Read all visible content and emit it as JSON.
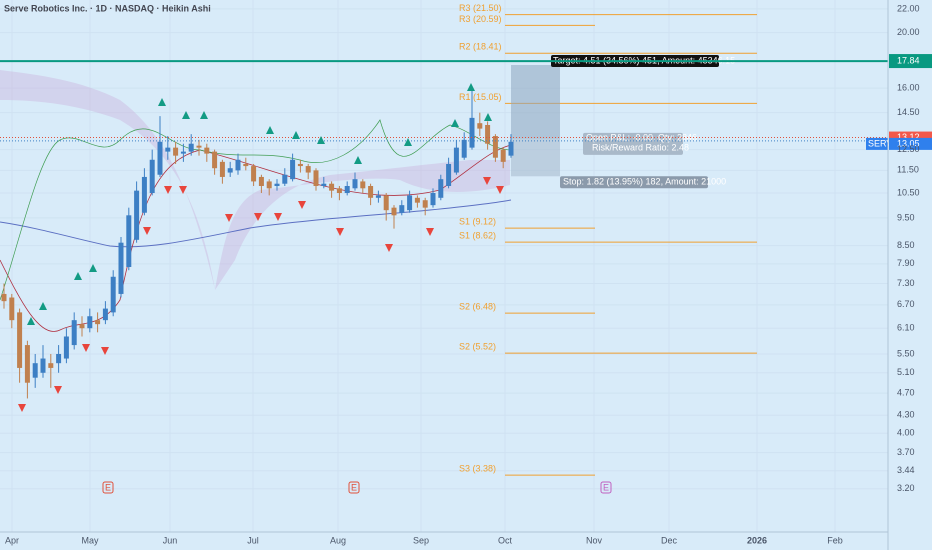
{
  "chart_data": {
    "type": "candlestick",
    "title": "Serve Robotics Inc. · 1D · NASDAQ · Heikin Ashi",
    "log_scale": true,
    "grid": true,
    "ylim": [
      2.69,
      22.8
    ],
    "yticks": [
      {
        "value": 22,
        "label": "22.00"
      },
      {
        "value": 20,
        "label": "20.00"
      },
      {
        "value": 16,
        "label": "16.00"
      },
      {
        "value": 14.5,
        "label": "14.50"
      },
      {
        "value": 12.5,
        "label": "12.50"
      },
      {
        "value": 11.5,
        "label": "11.50"
      },
      {
        "value": 10.5,
        "label": "10.50"
      },
      {
        "value": 9.5,
        "label": "9.50"
      },
      {
        "value": 8.5,
        "label": "8.50"
      },
      {
        "value": 7.9,
        "label": "7.90"
      },
      {
        "value": 7.3,
        "label": "7.30"
      },
      {
        "value": 6.7,
        "label": "6.70"
      },
      {
        "value": 6.1,
        "label": "6.10"
      },
      {
        "value": 5.5,
        "label": "5.50"
      },
      {
        "value": 5.1,
        "label": "5.10"
      },
      {
        "value": 4.7,
        "label": "4.70"
      },
      {
        "value": 4.3,
        "label": "4.30"
      },
      {
        "value": 4,
        "label": "4.00"
      },
      {
        "value": 3.7,
        "label": "3.70"
      },
      {
        "value": 3.44,
        "label": "3.44"
      },
      {
        "value": 3.2,
        "label": "3.20"
      }
    ],
    "xticks": [
      "Apr",
      "May",
      "Jun",
      "Jul",
      "Aug",
      "Sep",
      "Oct",
      "Nov",
      "Dec",
      "2026",
      "Feb"
    ],
    "up_color": "#3d7fc4",
    "down_color": "#c0804e",
    "candles": [
      [
        7.0,
        7.3,
        6.6,
        6.8
      ],
      [
        6.9,
        7.0,
        6.1,
        6.3
      ],
      [
        6.5,
        6.6,
        4.9,
        5.2
      ],
      [
        5.7,
        5.8,
        4.6,
        4.9
      ],
      [
        5.0,
        5.5,
        4.8,
        5.3
      ],
      [
        5.1,
        5.7,
        5.0,
        5.4
      ],
      [
        5.3,
        5.5,
        4.8,
        5.2
      ],
      [
        5.3,
        5.7,
        5.1,
        5.5
      ],
      [
        5.4,
        6.1,
        5.3,
        5.9
      ],
      [
        5.7,
        6.5,
        5.6,
        6.3
      ],
      [
        6.2,
        6.4,
        5.9,
        6.1
      ],
      [
        6.1,
        6.6,
        6.0,
        6.4
      ],
      [
        6.3,
        6.5,
        6.0,
        6.2
      ],
      [
        6.3,
        6.8,
        6.2,
        6.6
      ],
      [
        6.5,
        7.7,
        6.4,
        7.5
      ],
      [
        7.0,
        8.8,
        6.9,
        8.6
      ],
      [
        7.8,
        9.9,
        7.7,
        9.6
      ],
      [
        8.7,
        11.0,
        8.6,
        10.6
      ],
      [
        9.7,
        11.6,
        9.6,
        11.2
      ],
      [
        10.5,
        12.5,
        10.4,
        12.0
      ],
      [
        11.3,
        14.3,
        11.2,
        12.9
      ],
      [
        12.4,
        13.2,
        12.0,
        12.6
      ],
      [
        12.6,
        12.9,
        11.8,
        12.2
      ],
      [
        12.3,
        12.8,
        11.9,
        12.4
      ],
      [
        12.4,
        13.3,
        12.2,
        12.8
      ],
      [
        12.7,
        13.0,
        12.2,
        12.6
      ],
      [
        12.6,
        12.8,
        11.9,
        12.3
      ],
      [
        12.4,
        12.5,
        11.3,
        11.6
      ],
      [
        11.9,
        12.0,
        10.9,
        11.2
      ],
      [
        11.4,
        11.9,
        11.2,
        11.6
      ],
      [
        11.5,
        12.3,
        11.3,
        12.0
      ],
      [
        11.8,
        12.1,
        11.5,
        11.7
      ],
      [
        11.7,
        11.8,
        10.8,
        11.0
      ],
      [
        11.2,
        11.3,
        10.5,
        10.8
      ],
      [
        11.0,
        11.1,
        10.4,
        10.7
      ],
      [
        10.8,
        11.1,
        10.6,
        10.9
      ],
      [
        10.9,
        11.6,
        10.8,
        11.3
      ],
      [
        11.1,
        12.3,
        11.0,
        12.0
      ],
      [
        11.8,
        12.0,
        11.4,
        11.7
      ],
      [
        11.7,
        11.8,
        11.1,
        11.4
      ],
      [
        11.5,
        11.6,
        10.6,
        10.8
      ],
      [
        10.8,
        11.2,
        10.7,
        10.9
      ],
      [
        10.9,
        11.0,
        10.3,
        10.6
      ],
      [
        10.7,
        10.8,
        10.2,
        10.5
      ],
      [
        10.5,
        11.0,
        10.4,
        10.8
      ],
      [
        10.7,
        11.4,
        10.6,
        11.1
      ],
      [
        11.0,
        11.1,
        10.5,
        10.7
      ],
      [
        10.8,
        10.9,
        10.0,
        10.3
      ],
      [
        10.3,
        10.6,
        10.1,
        10.4
      ],
      [
        10.4,
        10.5,
        9.4,
        9.8
      ],
      [
        9.9,
        10.0,
        9.1,
        9.6
      ],
      [
        9.7,
        10.2,
        9.6,
        10.0
      ],
      [
        9.8,
        10.6,
        9.7,
        10.4
      ],
      [
        10.3,
        10.4,
        9.9,
        10.1
      ],
      [
        10.2,
        10.3,
        9.6,
        9.9
      ],
      [
        10.0,
        10.7,
        9.9,
        10.5
      ],
      [
        10.3,
        11.3,
        10.2,
        11.1
      ],
      [
        10.8,
        12.1,
        10.7,
        11.8
      ],
      [
        11.4,
        13.0,
        11.3,
        12.6
      ],
      [
        12.1,
        13.4,
        12.0,
        13.0
      ],
      [
        12.6,
        16.0,
        12.5,
        14.2
      ],
      [
        13.9,
        14.5,
        13.2,
        13.6
      ],
      [
        13.8,
        14.0,
        12.5,
        12.8
      ],
      [
        13.2,
        13.3,
        11.9,
        12.1
      ],
      [
        12.5,
        12.6,
        11.6,
        11.9
      ],
      [
        12.2,
        13.3,
        12.1,
        12.9
      ]
    ],
    "pivots": [
      {
        "label": "R3 (21.50)",
        "value": 21.5
      },
      {
        "label": "R3 (20.59)",
        "value": 20.59
      },
      {
        "label": "R2 (18.41)",
        "value": 18.41
      },
      {
        "label": "R1 (15.05)",
        "value": 15.05
      },
      {
        "label": "S1 (9.12)",
        "value": 9.12
      },
      {
        "label": "S1 (8.62)",
        "value": 8.62
      },
      {
        "label": "S2 (6.48)",
        "value": 6.48
      },
      {
        "label": "S2 (5.52)",
        "value": 5.52
      },
      {
        "label": "S3 (3.38)",
        "value": 3.38
      }
    ],
    "pivot_color": "#f0a030",
    "hline": {
      "value": 17.84,
      "color": "#089981"
    },
    "last_price": 13.12,
    "symbol": "SERV",
    "close": 13.05,
    "position": {
      "entry": 13.05,
      "target_price": 17.56,
      "stop_price": 11.23,
      "target_text": "Target: 4.51 (34.56%) 451, Amount: 45346.15",
      "pnl_text": "Open P&L: -0.00, Qty: 2846",
      "rr_text": "Risk/Reward Ratio: 2.48",
      "stop_text": "Stop: 1.82 (13.95%) 182, Amount: 21000"
    },
    "earnings": [
      "E",
      "E",
      "E"
    ]
  }
}
